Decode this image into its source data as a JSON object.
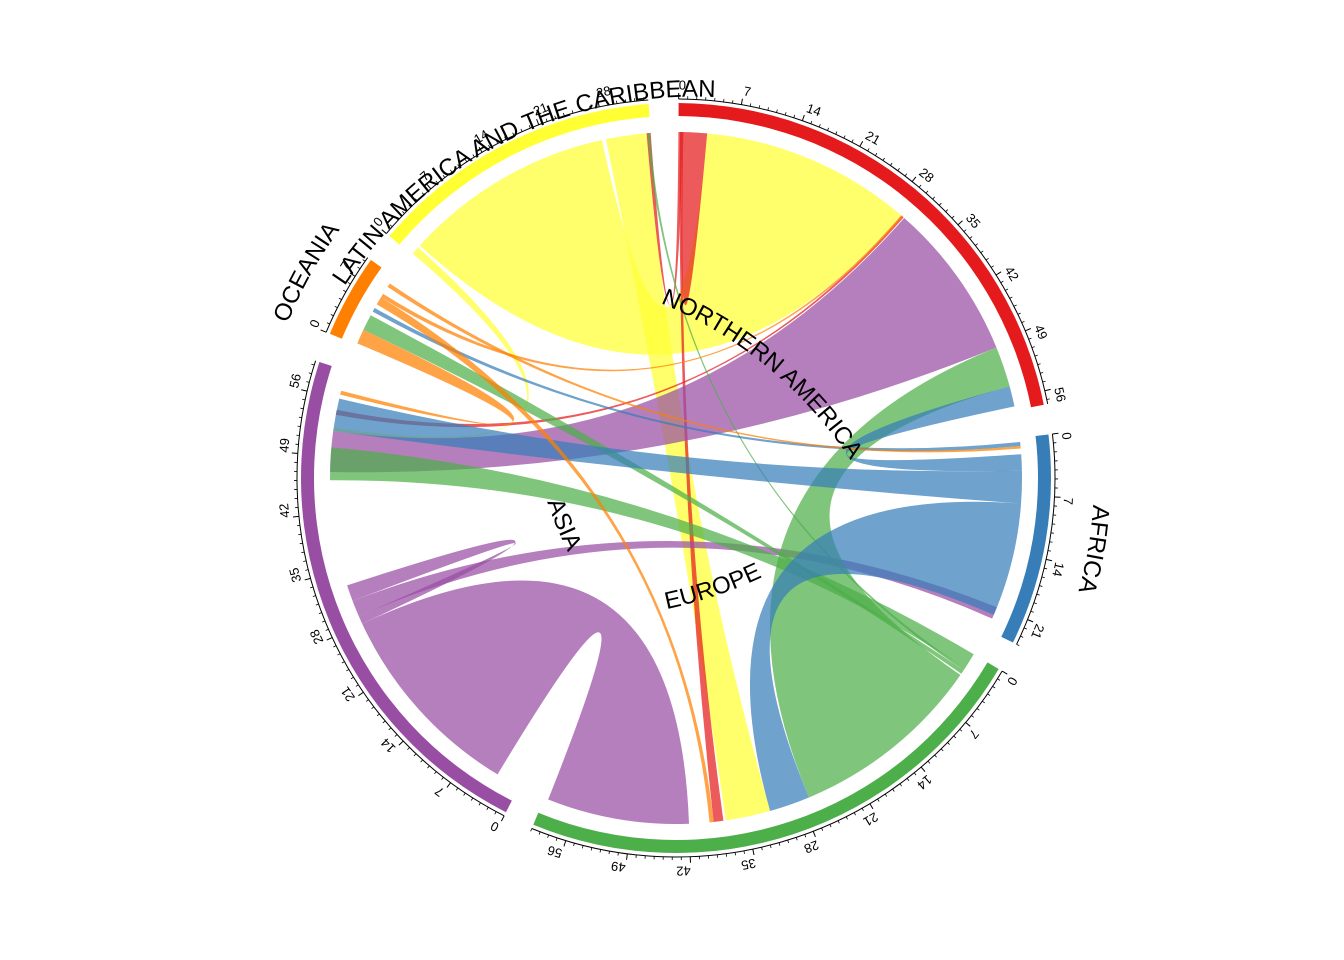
{
  "chart_data": {
    "type": "chord",
    "title": "",
    "sectors": [
      {
        "name": "NORTHERN AMERICA",
        "color": "#E41A1C",
        "total": 57.5,
        "tick_labels": [
          "0",
          "7",
          "14",
          "21",
          "28",
          "35",
          "42",
          "49",
          "56"
        ]
      },
      {
        "name": "AFRICA",
        "color": "#377EB8",
        "total": 24,
        "tick_labels": [
          "0",
          "7",
          "14",
          "21"
        ]
      },
      {
        "name": "EUROPE",
        "color": "#4DAF4A",
        "total": 60,
        "tick_labels": [
          "0",
          "7",
          "14",
          "21",
          "28",
          "35",
          "42",
          "49",
          "56"
        ]
      },
      {
        "name": "ASIA",
        "color": "#984EA3",
        "total": 59.5,
        "tick_labels": [
          "0",
          "7",
          "14",
          "21",
          "28",
          "35",
          "42",
          "49",
          "56"
        ]
      },
      {
        "name": "OCEANIA",
        "color": "#FF7F00",
        "total": 9.5,
        "tick_labels": [
          "0",
          "7"
        ]
      },
      {
        "name": "LATIN AMERICA AND THE CARIBBEAN",
        "color": "#FFFF33",
        "total": 33.5,
        "tick_labels": [
          "0",
          "7",
          "14",
          "21",
          "28"
        ]
      }
    ],
    "tick_step": 7,
    "minor_tick_step": 1,
    "flows": [
      {
        "from": "LATIN AMERICA AND THE CARIBBEAN",
        "to": "NORTHERN AMERICA",
        "from_range": [
          1.5,
          27.5
        ],
        "to_range": [
          3.5,
          29.5
        ],
        "color": "#FFFF33"
      },
      {
        "from": "LATIN AMERICA AND THE CARIBBEAN",
        "to": "EUROPE",
        "from_range": [
          28.0,
          33.0
        ],
        "to_range": [
          32.0,
          37.5
        ],
        "color": "#FFFF33"
      },
      {
        "from": "LATIN AMERICA AND THE CARIBBEAN",
        "to": "ASIA",
        "from_range": [
          0.2,
          1.2
        ],
        "to_range": [
          52.0,
          52.4
        ],
        "color": "#FFFF33"
      },
      {
        "from": "NORTHERN AMERICA",
        "to": "NORTHERN AMERICA",
        "from_range": [
          0.5,
          2.5
        ],
        "to_range": [
          1.6,
          3.5
        ],
        "color": "#E41A1C"
      },
      {
        "from": "NORTHERN AMERICA",
        "to": "LATIN AMERICA AND THE CARIBBEAN",
        "from_range": [
          0.0,
          0.5
        ],
        "to_range": [
          33.0,
          33.5
        ],
        "color": "#E41A1C"
      },
      {
        "from": "NORTHERN AMERICA",
        "to": "EUROPE",
        "from_range": [
          0.2,
          0.6
        ],
        "to_range": [
          37.8,
          39.0
        ],
        "color": "#E41A1C"
      },
      {
        "from": "NORTHERN AMERICA",
        "to": "ASIA",
        "from_range": [
          29.6,
          29.9
        ],
        "to_range": [
          54.0,
          54.6
        ],
        "color": "#E41A1C"
      },
      {
        "from": "ASIA",
        "to": "NORTHERN AMERICA",
        "from_range": [
          47.0,
          52.0
        ],
        "to_range": [
          30.0,
          49.5
        ],
        "color": "#984EA3"
      },
      {
        "from": "ASIA",
        "to": "EUROPE",
        "from_range": [
          3.0,
          28.0
        ],
        "to_range": [
          42.0,
          59.5
        ],
        "color": "#984EA3"
      },
      {
        "from": "ASIA",
        "to": "AFRICA",
        "from_range": [
          29.0,
          31.0
        ],
        "to_range": [
          21.0,
          22.5
        ],
        "color": "#984EA3"
      },
      {
        "from": "ASIA",
        "to": "ASIA",
        "from_range": [
          31.0,
          33.0
        ],
        "to_range": [
          28.0,
          29.0
        ],
        "color": "#984EA3"
      },
      {
        "from": "EUROPE",
        "to": "NORTHERN AMERICA",
        "from_range": [
          3.0,
          27.0
        ],
        "to_range": [
          49.5,
          54.5
        ],
        "color": "#4DAF4A"
      },
      {
        "from": "EUROPE",
        "to": "ASIA",
        "from_range": [
          0.0,
          2.0
        ],
        "to_range": [
          46.0,
          50.0
        ],
        "color": "#4DAF4A"
      },
      {
        "from": "EUROPE",
        "to": "LATIN AMERICA AND THE CARIBBEAN",
        "from_range": [
          2.0,
          2.3
        ],
        "to_range": [
          33.1,
          33.4
        ],
        "color": "#4DAF4A"
      },
      {
        "from": "EUROPE",
        "to": "OCEANIA",
        "from_range": [
          2.3,
          2.8
        ],
        "to_range": [
          2.0,
          4.0
        ],
        "color": "#4DAF4A"
      },
      {
        "from": "AFRICA",
        "to": "EUROPE",
        "from_range": [
          8.0,
          22.0
        ],
        "to_range": [
          27.0,
          32.0
        ],
        "color": "#377EB8"
      },
      {
        "from": "AFRICA",
        "to": "NORTHERN AMERICA",
        "from_range": [
          2.0,
          4.0
        ],
        "to_range": [
          54.5,
          57.0
        ],
        "color": "#377EB8"
      },
      {
        "from": "AFRICA",
        "to": "ASIA",
        "from_range": [
          4.0,
          8.0
        ],
        "to_range": [
          52.0,
          56.0
        ],
        "color": "#377EB8"
      },
      {
        "from": "AFRICA",
        "to": "OCEANIA",
        "from_range": [
          0.5,
          1.0
        ],
        "to_range": [
          4.5,
          5.0
        ],
        "color": "#377EB8"
      },
      {
        "from": "OCEANIA",
        "to": "NORTHERN AMERICA",
        "from_range": [
          6.5,
          7.0
        ],
        "to_range": [
          29.5,
          29.8
        ],
        "color": "#FF7F00"
      },
      {
        "from": "OCEANIA",
        "to": "EUROPE",
        "from_range": [
          5.5,
          6.5
        ],
        "to_range": [
          39.0,
          39.5
        ],
        "color": "#FF7F00"
      },
      {
        "from": "OCEANIA",
        "to": "ASIA",
        "from_range": [
          0.2,
          2.0
        ],
        "to_range": [
          56.5,
          57.0
        ],
        "color": "#FF7F00"
      },
      {
        "from": "OCEANIA",
        "to": "AFRICA",
        "from_range": [
          8.0,
          8.5
        ],
        "to_range": [
          1.0,
          1.3
        ],
        "color": "#FF7F00"
      }
    ]
  }
}
